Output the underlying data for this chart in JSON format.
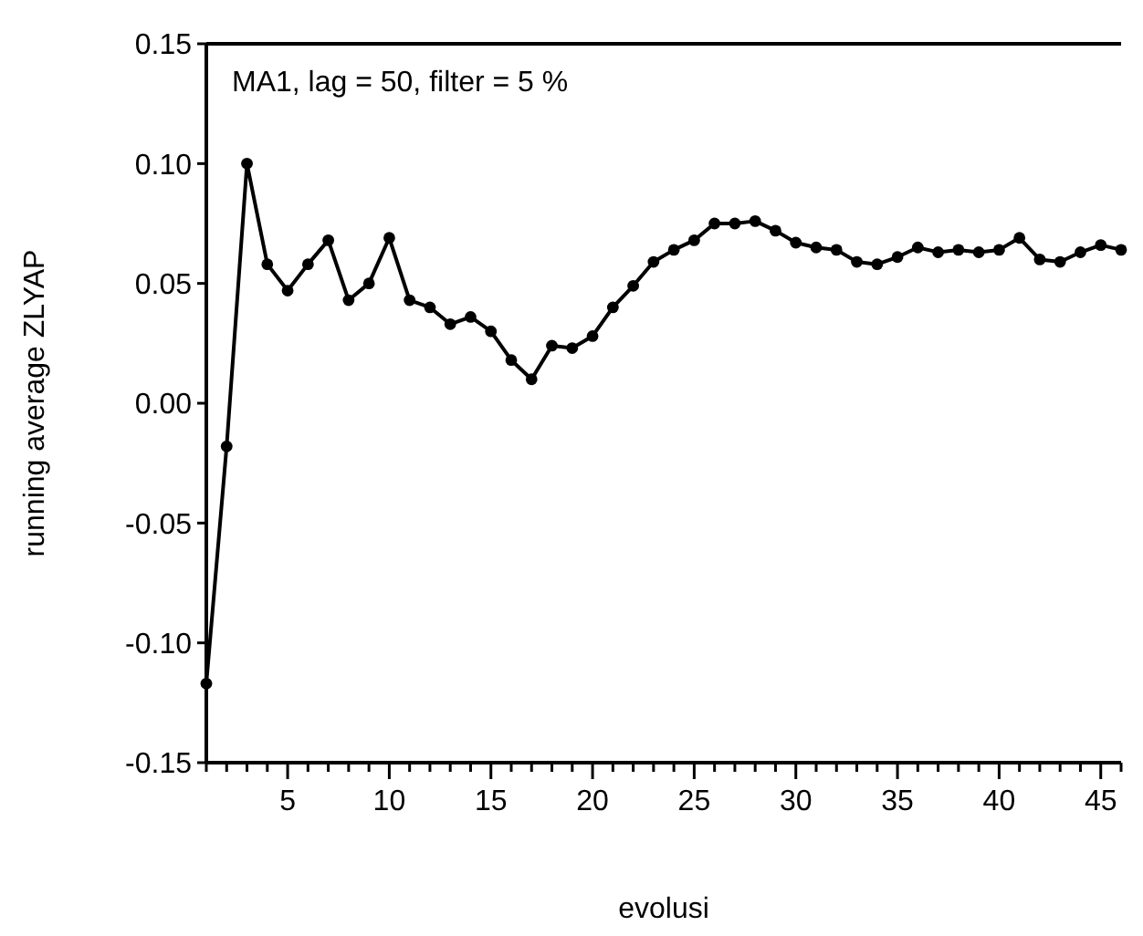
{
  "chart_data": {
    "type": "line",
    "xlabel": "evolusi",
    "ylabel": "running average ZLYAP",
    "annotations": [
      "MA1, lag = 50, filter = 5 %"
    ],
    "x": [
      1,
      2,
      3,
      4,
      5,
      6,
      7,
      8,
      9,
      10,
      11,
      12,
      13,
      14,
      15,
      16,
      17,
      18,
      19,
      20,
      21,
      22,
      23,
      24,
      25,
      26,
      27,
      28,
      29,
      30,
      31,
      32,
      33,
      34,
      35,
      36,
      37,
      38,
      39,
      40,
      41,
      42,
      43,
      44,
      45,
      46
    ],
    "series": [
      {
        "color": "#000000",
        "values": [
          -0.117,
          -0.018,
          0.1,
          0.058,
          0.047,
          0.058,
          0.068,
          0.043,
          0.05,
          0.069,
          0.043,
          0.04,
          0.033,
          0.036,
          0.03,
          0.018,
          0.01,
          0.024,
          0.023,
          0.028,
          0.04,
          0.049,
          0.059,
          0.064,
          0.068,
          0.075,
          0.075,
          0.076,
          0.072,
          0.067,
          0.065,
          0.064,
          0.059,
          0.058,
          0.061,
          0.065,
          0.063,
          0.064,
          0.063,
          0.064,
          0.069,
          0.06,
          0.059,
          0.063,
          0.066,
          0.064
        ]
      }
    ],
    "xlim": [
      1,
      46
    ],
    "ylim": [
      -0.15,
      0.15
    ],
    "xticks": [
      {
        "value": 1,
        "label": null
      },
      {
        "value": 2,
        "label": null
      },
      {
        "value": 3,
        "label": null
      },
      {
        "value": 4,
        "label": null
      },
      5,
      {
        "value": 6,
        "label": null
      },
      {
        "value": 7,
        "label": null
      },
      {
        "value": 8,
        "label": null
      },
      {
        "value": 9,
        "label": null
      },
      10,
      {
        "value": 11,
        "label": null
      },
      {
        "value": 12,
        "label": null
      },
      {
        "value": 13,
        "label": null
      },
      {
        "value": 14,
        "label": null
      },
      15,
      {
        "value": 16,
        "label": null
      },
      {
        "value": 17,
        "label": null
      },
      {
        "value": 18,
        "label": null
      },
      {
        "value": 19,
        "label": null
      },
      20,
      {
        "value": 21,
        "label": null
      },
      {
        "value": 22,
        "label": null
      },
      {
        "value": 23,
        "label": null
      },
      {
        "value": 24,
        "label": null
      },
      25,
      {
        "value": 26,
        "label": null
      },
      {
        "value": 27,
        "label": null
      },
      {
        "value": 28,
        "label": null
      },
      {
        "value": 29,
        "label": null
      },
      30,
      {
        "value": 31,
        "label": null
      },
      {
        "value": 32,
        "label": null
      },
      {
        "value": 33,
        "label": null
      },
      {
        "value": 34,
        "label": null
      },
      35,
      {
        "value": 36,
        "label": null
      },
      {
        "value": 37,
        "label": null
      },
      {
        "value": 38,
        "label": null
      },
      {
        "value": 39,
        "label": null
      },
      40,
      {
        "value": 41,
        "label": null
      },
      {
        "value": 42,
        "label": null
      },
      {
        "value": 43,
        "label": null
      },
      {
        "value": 44,
        "label": null
      },
      45,
      {
        "value": 46,
        "label": null
      }
    ],
    "yticks": [
      {
        "value": -0.15,
        "label": "-0.15"
      },
      {
        "value": -0.1,
        "label": "-0.10"
      },
      {
        "value": -0.05,
        "label": "-0.05"
      },
      {
        "value": 0,
        "label": "0.00"
      },
      {
        "value": 0.05,
        "label": "0.05"
      },
      {
        "value": 0.1,
        "label": "0.10"
      },
      {
        "value": 0.15,
        "label": "0.15"
      }
    ],
    "grid": false,
    "marker": "circle",
    "line_style": "solid"
  }
}
